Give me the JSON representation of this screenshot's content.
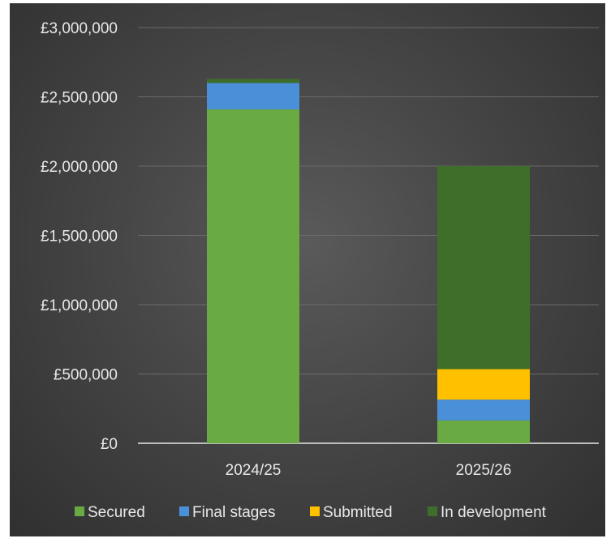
{
  "chart_data": {
    "type": "bar",
    "stacked": true,
    "categories": [
      "2024/25",
      "2025/26"
    ],
    "series": [
      {
        "name": "Secured",
        "values": [
          2410000,
          165000
        ],
        "color": "#6aaa42"
      },
      {
        "name": "Final stages",
        "values": [
          190000,
          150000
        ],
        "color": "#4a90d9"
      },
      {
        "name": "Submitted",
        "values": [
          0,
          220000
        ],
        "color": "#ffc000"
      },
      {
        "name": "In development",
        "values": [
          30000,
          1465000
        ],
        "color": "#3f6e2a"
      }
    ],
    "ylim": [
      0,
      3000000
    ],
    "yticks": [
      0,
      500000,
      1000000,
      1500000,
      2000000,
      2500000,
      3000000
    ],
    "ytick_labels": [
      "£0",
      "£500,000",
      "£1,000,000",
      "£1,500,000",
      "£2,000,000",
      "£2,500,000",
      "£3,000,000"
    ],
    "grid": true,
    "legend": "bottom",
    "title": "",
    "xlabel": "",
    "ylabel": ""
  }
}
